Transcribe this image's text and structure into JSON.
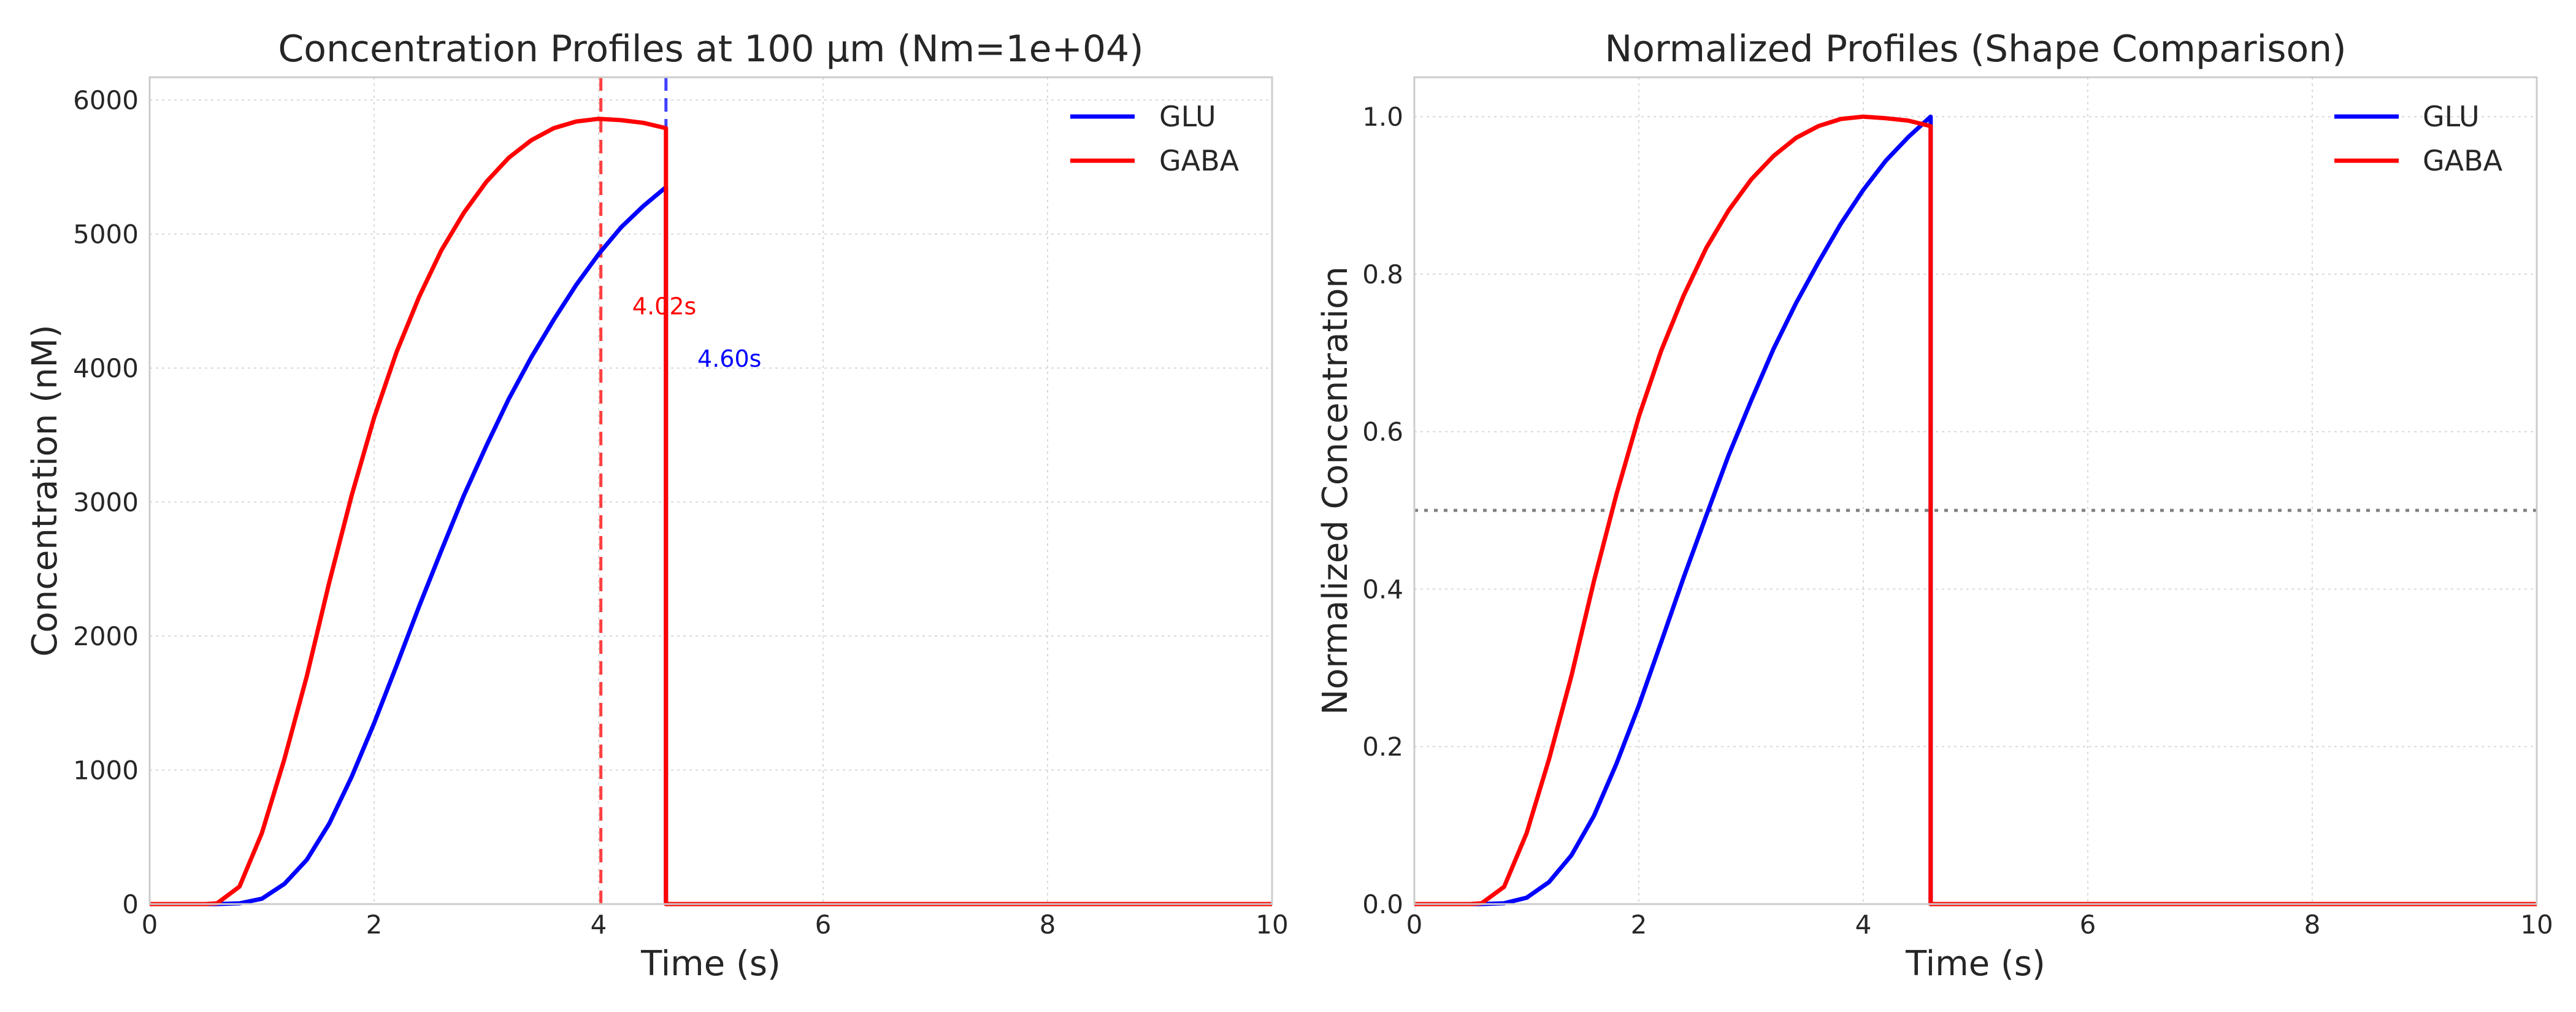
{
  "chart_data": [
    {
      "type": "line",
      "title": "Concentration Profiles at 100 μm (Nm=1e+04)",
      "xlabel": "Time (s)",
      "ylabel": "Concentration (nM)",
      "xlim": [
        0,
        10
      ],
      "ylim": [
        0,
        6170
      ],
      "xticks": [
        0,
        2,
        4,
        6,
        8,
        10
      ],
      "yticks": [
        0,
        1000,
        2000,
        3000,
        4000,
        5000,
        6000
      ],
      "grid": true,
      "legend": "top-right",
      "series": [
        {
          "name": "GLU",
          "color": "#0000ff",
          "x": [
            0,
            0.6,
            0.8,
            1.0,
            1.2,
            1.4,
            1.6,
            1.8,
            2.0,
            2.2,
            2.4,
            2.6,
            2.8,
            3.0,
            3.2,
            3.4,
            3.6,
            3.8,
            4.0,
            4.2,
            4.4,
            4.6,
            4.6,
            4.8,
            10
          ],
          "y": [
            0,
            0,
            5,
            40,
            150,
            330,
            600,
            950,
            1350,
            1780,
            2220,
            2640,
            3050,
            3420,
            3770,
            4080,
            4360,
            4620,
            4850,
            5050,
            5210,
            5350,
            0,
            0,
            0
          ]
        },
        {
          "name": "GABA",
          "color": "#ff0000",
          "x": [
            0,
            0.5,
            0.6,
            0.8,
            1.0,
            1.2,
            1.4,
            1.6,
            1.8,
            2.0,
            2.2,
            2.4,
            2.6,
            2.8,
            3.0,
            3.2,
            3.4,
            3.6,
            3.8,
            4.0,
            4.2,
            4.4,
            4.6,
            4.6,
            4.8,
            10
          ],
          "y": [
            0,
            0,
            5,
            130,
            530,
            1080,
            1700,
            2400,
            3050,
            3630,
            4120,
            4530,
            4880,
            5160,
            5390,
            5570,
            5700,
            5790,
            5840,
            5860,
            5850,
            5830,
            5790,
            0,
            0,
            0
          ]
        }
      ],
      "vlines": [
        {
          "x": 4.02,
          "color": "#ff0000",
          "style": "dashed"
        },
        {
          "x": 4.6,
          "color": "#0000ff",
          "style": "dashed"
        }
      ],
      "annotations": [
        {
          "text": "4.02s",
          "x": 4.3,
          "y": 4400,
          "color": "#ff0000"
        },
        {
          "text": "4.60s",
          "x": 4.88,
          "y": 4010,
          "color": "#0000ff"
        }
      ]
    },
    {
      "type": "line",
      "title": "Normalized Profiles (Shape Comparison)",
      "xlabel": "Time (s)",
      "ylabel": "Normalized Concentration",
      "xlim": [
        0,
        10
      ],
      "ylim": [
        0,
        1.05
      ],
      "xticks": [
        0,
        2,
        4,
        6,
        8,
        10
      ],
      "yticks": [
        "0.0",
        "0.2",
        "0.4",
        "0.6",
        "0.8",
        "1.0"
      ],
      "grid": true,
      "legend": "top-right",
      "series": [
        {
          "name": "GLU",
          "color": "#0000ff",
          "x": [
            0,
            0.6,
            0.8,
            1.0,
            1.2,
            1.4,
            1.6,
            1.8,
            2.0,
            2.2,
            2.4,
            2.6,
            2.8,
            3.0,
            3.2,
            3.4,
            3.6,
            3.8,
            4.0,
            4.2,
            4.4,
            4.6,
            4.6,
            4.8,
            10
          ],
          "y": [
            0,
            0,
            0.001,
            0.008,
            0.028,
            0.062,
            0.112,
            0.178,
            0.252,
            0.333,
            0.415,
            0.493,
            0.57,
            0.639,
            0.705,
            0.763,
            0.815,
            0.864,
            0.907,
            0.944,
            0.974,
            1.0,
            0,
            0,
            0
          ]
        },
        {
          "name": "GABA",
          "color": "#ff0000",
          "x": [
            0,
            0.5,
            0.6,
            0.8,
            1.0,
            1.2,
            1.4,
            1.6,
            1.8,
            2.0,
            2.2,
            2.4,
            2.6,
            2.8,
            3.0,
            3.2,
            3.4,
            3.6,
            3.8,
            4.0,
            4.2,
            4.4,
            4.6,
            4.6,
            4.8,
            10
          ],
          "y": [
            0,
            0,
            0.001,
            0.022,
            0.09,
            0.184,
            0.29,
            0.41,
            0.52,
            0.619,
            0.703,
            0.773,
            0.833,
            0.881,
            0.92,
            0.95,
            0.973,
            0.988,
            0.997,
            1.0,
            0.998,
            0.995,
            0.988,
            0,
            0,
            0
          ]
        }
      ],
      "hlines": [
        {
          "y": 0.5,
          "color": "#808080",
          "style": "dotted"
        }
      ]
    }
  ]
}
